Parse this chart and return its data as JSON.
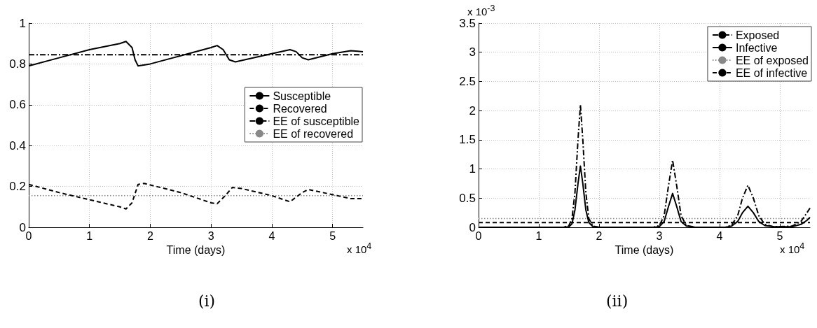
{
  "chart_data": [
    {
      "type": "line",
      "xlabel": "Time (days)",
      "xlim": [
        0,
        5.5
      ],
      "xticks": [
        0,
        1,
        2,
        3,
        4,
        5
      ],
      "ylim": [
        0,
        1
      ],
      "yticks": [
        0,
        0.2,
        0.4,
        0.6,
        0.8,
        1
      ],
      "grid": true,
      "legend": "right",
      "marker": "none",
      "annotations": [
        "x 10$^{4}$",
        "(i)"
      ],
      "series": [
        {
          "name": "Susceptible",
          "color": "#000000",
          "line_style": "solid",
          "x": [
            0,
            0.5,
            1,
            1.5,
            1.6,
            1.7,
            1.75,
            1.8,
            2,
            2.5,
            3,
            3.1,
            3.2,
            3.3,
            3.4,
            4,
            4.3,
            4.4,
            4.5,
            4.6,
            5,
            5.3,
            5.5
          ],
          "values": [
            0.79,
            0.83,
            0.87,
            0.9,
            0.91,
            0.88,
            0.82,
            0.79,
            0.8,
            0.84,
            0.88,
            0.89,
            0.87,
            0.82,
            0.81,
            0.85,
            0.87,
            0.86,
            0.83,
            0.82,
            0.85,
            0.865,
            0.86
          ]
        },
        {
          "name": "Recovered",
          "color": "#000000",
          "line_style": "dashed",
          "x": [
            0,
            0.5,
            1,
            1.5,
            1.6,
            1.7,
            1.8,
            1.9,
            2.5,
            3,
            3.1,
            3.25,
            3.35,
            3.5,
            4,
            4.3,
            4.5,
            4.6,
            5,
            5.3,
            5.5
          ],
          "values": [
            0.21,
            0.17,
            0.135,
            0.1,
            0.09,
            0.12,
            0.21,
            0.215,
            0.17,
            0.12,
            0.115,
            0.16,
            0.195,
            0.19,
            0.155,
            0.125,
            0.17,
            0.185,
            0.16,
            0.14,
            0.14
          ]
        },
        {
          "name": "EE of susceptible",
          "color": "#000000",
          "line_style": "dashdot",
          "x": [
            0,
            5.5
          ],
          "values": [
            0.845,
            0.845
          ]
        },
        {
          "name": "EE of recovered",
          "color": "#888888",
          "line_style": "dotted",
          "x": [
            0,
            5.5
          ],
          "values": [
            0.155,
            0.155
          ]
        }
      ]
    },
    {
      "type": "line",
      "xlabel": "Time (days)",
      "xlim": [
        0,
        5.5
      ],
      "xticks": [
        0,
        1,
        2,
        3,
        4,
        5
      ],
      "ylim": [
        0,
        3.5
      ],
      "yticks": [
        0,
        0.5,
        1,
        1.5,
        2,
        2.5,
        3,
        3.5
      ],
      "grid": true,
      "legend": "top right",
      "marker": "none",
      "annotations": [
        "x 10$^{-3}$",
        "x 10$^{4}$",
        "(ii)"
      ],
      "series": [
        {
          "name": "Exposed",
          "color": "#000000",
          "line_style": "dashdot",
          "x": [
            0,
            1.4,
            1.5,
            1.55,
            1.6,
            1.65,
            1.69,
            1.73,
            1.78,
            1.83,
            1.9,
            2,
            2.9,
            3,
            3.08,
            3.15,
            3.22,
            3.29,
            3.36,
            3.45,
            3.6,
            4.1,
            4.2,
            4.3,
            4.38,
            4.47,
            4.56,
            4.65,
            4.75,
            4.9,
            5.2,
            5.35,
            5.45,
            5.5
          ],
          "values": [
            0,
            0,
            0.03,
            0.15,
            0.6,
            1.5,
            2.1,
            1.5,
            0.6,
            0.15,
            0.02,
            0,
            0,
            0.03,
            0.2,
            0.7,
            1.15,
            0.7,
            0.2,
            0.03,
            0,
            0,
            0.04,
            0.2,
            0.5,
            0.72,
            0.5,
            0.2,
            0.05,
            0.01,
            0.02,
            0.1,
            0.25,
            0.33
          ]
        },
        {
          "name": "Infective",
          "color": "#000000",
          "line_style": "solid",
          "x": [
            0,
            1.4,
            1.5,
            1.55,
            1.6,
            1.65,
            1.69,
            1.73,
            1.78,
            1.83,
            1.9,
            2,
            2.9,
            3,
            3.08,
            3.15,
            3.22,
            3.29,
            3.36,
            3.45,
            3.6,
            4.1,
            4.2,
            4.3,
            4.38,
            4.47,
            4.56,
            4.65,
            4.75,
            4.9,
            5.2,
            5.35,
            5.45,
            5.5
          ],
          "values": [
            0,
            0,
            0.01,
            0.06,
            0.3,
            0.75,
            1.05,
            0.75,
            0.3,
            0.08,
            0.01,
            0,
            0,
            0.01,
            0.1,
            0.35,
            0.58,
            0.35,
            0.1,
            0.02,
            0,
            0,
            0.02,
            0.1,
            0.25,
            0.36,
            0.25,
            0.1,
            0.03,
            0.01,
            0.01,
            0.05,
            0.12,
            0.17
          ]
        },
        {
          "name": "EE of exposed",
          "color": "#888888",
          "line_style": "dotted",
          "x": [
            0,
            5.5
          ],
          "values": [
            0.15,
            0.15
          ]
        },
        {
          "name": "EE of infective",
          "color": "#000000",
          "line_style": "dashed",
          "x": [
            0,
            5.5
          ],
          "values": [
            0.08,
            0.08
          ]
        }
      ]
    }
  ]
}
